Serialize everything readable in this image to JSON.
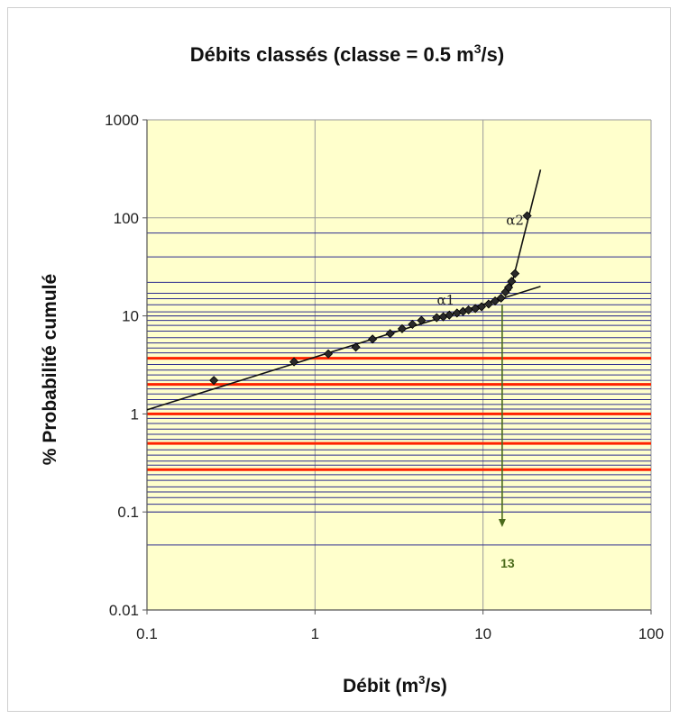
{
  "chart_data": {
    "type": "scatter",
    "title": {
      "main": "Débits classés (classe = 0.5 m",
      "sup": "3",
      "end": "/s)"
    },
    "xlabel": {
      "main": "Débit (m",
      "sup": "3",
      "end": "/s)"
    },
    "ylabel": "% Probabilité cumulé",
    "xscale": "log",
    "yscale": "log",
    "xlim": [
      0.1,
      100
    ],
    "ylim": [
      0.01,
      1000
    ],
    "x_ticks": [
      "0.1",
      "1",
      "10",
      "100"
    ],
    "y_ticks": [
      "0.01",
      "0.1",
      "1",
      "10",
      "100",
      "1000"
    ],
    "plot_background": "#ffffcc",
    "grid_minor_color": "#2b2b8f",
    "highlight_color": "#ff2200",
    "highlight_levels": [
      3.7,
      2.0,
      1.0,
      0.5,
      0.27
    ],
    "probability_levels": [
      70,
      40,
      22,
      17,
      15,
      13,
      11,
      10,
      9,
      8,
      7,
      6,
      5.3,
      4.7,
      4.2,
      3.2,
      2.8,
      2.5,
      2.2,
      1.8,
      1.6,
      1.4,
      1.25,
      1.12,
      0.9,
      0.8,
      0.7,
      0.62,
      0.55,
      0.43,
      0.38,
      0.33,
      0.3,
      0.24,
      0.21,
      0.18,
      0.16,
      0.14,
      0.12,
      0.1,
      0.046
    ],
    "series": [
      {
        "type": "scatter",
        "marker": "diamond",
        "points": [
          [
            0.25,
            2.2
          ],
          [
            0.75,
            3.4
          ],
          [
            1.2,
            4.1
          ],
          [
            1.75,
            4.8
          ],
          [
            2.2,
            5.8
          ],
          [
            2.8,
            6.6
          ],
          [
            3.3,
            7.4
          ],
          [
            3.8,
            8.2
          ],
          [
            4.3,
            9.0
          ],
          [
            5.3,
            9.6
          ],
          [
            5.8,
            9.8
          ],
          [
            6.3,
            10.2
          ],
          [
            7.0,
            10.7
          ],
          [
            7.6,
            11.1
          ],
          [
            8.2,
            11.5
          ],
          [
            9.0,
            11.9
          ],
          [
            9.8,
            12.4
          ],
          [
            10.8,
            13.2
          ],
          [
            11.8,
            14.2
          ],
          [
            12.8,
            15.2
          ],
          [
            13.6,
            17.5
          ],
          [
            14.2,
            19.5
          ],
          [
            14.8,
            22.5
          ],
          [
            15.5,
            27.0
          ],
          [
            18.3,
            105.0
          ]
        ]
      },
      {
        "type": "line",
        "name": "α1",
        "points": [
          [
            0.1,
            1.1
          ],
          [
            22,
            20
          ]
        ]
      },
      {
        "type": "line",
        "name": "α2",
        "points": [
          [
            14.5,
            18
          ],
          [
            22,
            310
          ]
        ]
      }
    ],
    "annotations": [
      {
        "text": "α1",
        "x": 6.0,
        "y": 13.0
      },
      {
        "text": "α2",
        "x": 15.5,
        "y": 85.0
      },
      {
        "text": "13",
        "x": 13,
        "y": 0.03,
        "arrow_from_y": 13,
        "arrow_to_y": 0.07,
        "color": "#4a6a1a"
      }
    ]
  }
}
